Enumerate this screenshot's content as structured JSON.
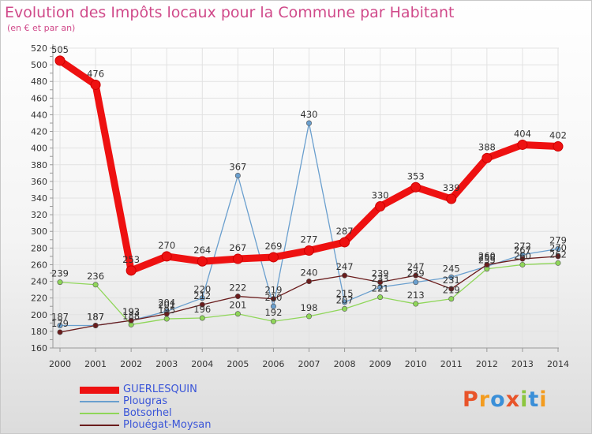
{
  "chart_data": {
    "type": "line",
    "title": "Evolution des Impôts locaux pour la Commune par Habitant",
    "subtitle": "(en € et par an)",
    "xlabel": "",
    "ylabel": "",
    "ylim": [
      160,
      520
    ],
    "yticks": [
      160,
      180,
      200,
      220,
      240,
      260,
      280,
      300,
      320,
      340,
      360,
      380,
      400,
      420,
      440,
      460,
      480,
      500,
      520
    ],
    "x": [
      "2000",
      "2001",
      "2002",
      "2003",
      "2004",
      "2005",
      "2006",
      "2007",
      "2008",
      "2009",
      "2010",
      "2011",
      "2012",
      "2013",
      "2014"
    ],
    "grid": true,
    "series": [
      {
        "name": "GUERLESQUIN",
        "color": "#ee1111",
        "values": [
          505,
          476,
          253,
          270,
          264,
          267,
          269,
          277,
          287,
          330,
          353,
          339,
          388,
          404,
          402
        ]
      },
      {
        "name": "Plougras",
        "color": "#6a9fce",
        "values": [
          187,
          187,
          193,
          204,
          220,
          367,
          210,
          430,
          215,
          233,
          239,
          245,
          258,
          272,
          279
        ]
      },
      {
        "name": "Botsorhel",
        "color": "#8fd659",
        "values": [
          239,
          236,
          188,
          195,
          196,
          201,
          192,
          198,
          207,
          221,
          213,
          219,
          255,
          260,
          262
        ]
      },
      {
        "name": "Plouégat-Moysan",
        "color": "#6a1c1c",
        "values": [
          179,
          187,
          193,
          201,
          212,
          222,
          219,
          240,
          247,
          239,
          247,
          231,
          260,
          267,
          270
        ]
      }
    ]
  },
  "legend": {
    "items": [
      "GUERLESQUIN",
      "Plougras",
      "Botsorhel",
      "Plouégat-Moysan"
    ]
  },
  "branding": {
    "logo_text": "Proxiti"
  }
}
